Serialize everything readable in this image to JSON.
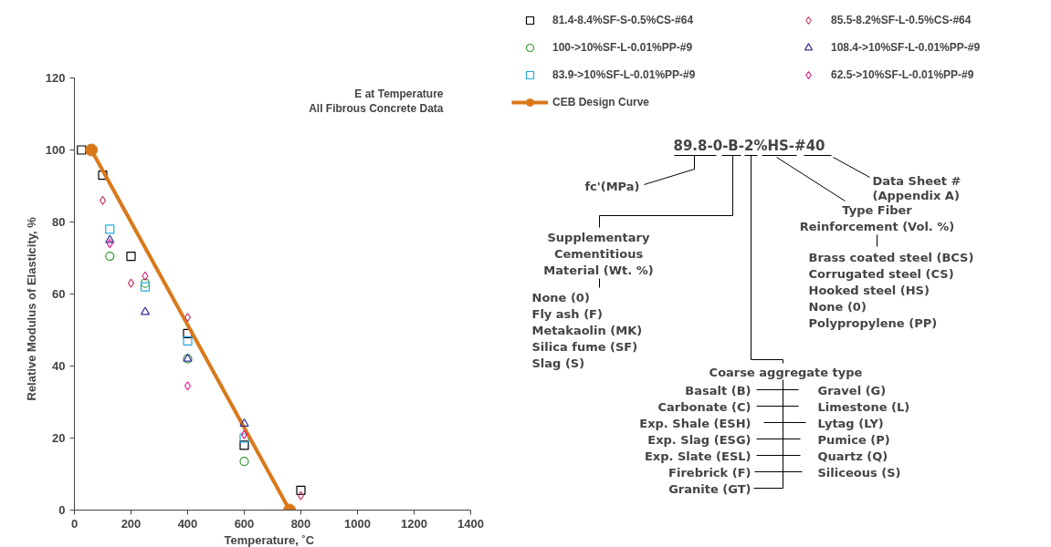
{
  "chart_data": {
    "type": "scatter",
    "xlabel": "Temperature, ˚C",
    "ylabel": "Relative Modulus of Elasticity, %",
    "xlim": [
      0,
      1400
    ],
    "xticks": [
      0,
      200,
      400,
      600,
      800,
      1000,
      1200,
      1400
    ],
    "ylim": [
      0,
      120
    ],
    "yticks": [
      0,
      20,
      40,
      60,
      80,
      100,
      120
    ],
    "legend": "top right",
    "series": [
      {
        "name": "81.4-8.4%SF-S-0.5%CS-#64",
        "color": "#000000",
        "marker": "square",
        "x": [
          25,
          100,
          200,
          400,
          600,
          800
        ],
        "values": [
          100,
          93,
          70.5,
          49,
          18,
          5.5
        ]
      },
      {
        "name": "100->10%SF-L-0.01%PP-#9",
        "color": "#339933",
        "marker": "circle",
        "x": [
          125,
          250,
          400,
          600
        ],
        "values": [
          70.5,
          63,
          42,
          13.5
        ]
      },
      {
        "name": "83.9->10%SF-L-0.01%PP-#9",
        "color": "#22aadd",
        "marker": "square",
        "x": [
          125,
          250,
          400,
          600
        ],
        "values": [
          78,
          62,
          47,
          20
        ]
      },
      {
        "name": "CEB Design Curve",
        "type": "line",
        "color": "#d9781a",
        "marker": "circle",
        "x": [
          60,
          760
        ],
        "values": [
          100,
          0
        ]
      },
      {
        "name": "85.5-8.2%SF-L-0.5%CS-#64",
        "color": "#cc4466",
        "marker": "diamond",
        "x": [
          100,
          200,
          400,
          800
        ],
        "values": [
          86,
          63,
          53.5,
          4
        ]
      },
      {
        "name": "108.4->10%SF-L-0.01%PP-#9",
        "color": "#333399",
        "marker": "triangle",
        "x": [
          125,
          250,
          400,
          600
        ],
        "values": [
          75,
          55,
          42,
          24
        ]
      },
      {
        "name": "62.5->10%SF-L-0.01%PP-#9",
        "color": "#dd2288",
        "marker": "diamond",
        "x": [
          125,
          250,
          400,
          600
        ],
        "values": [
          74,
          65,
          34.5,
          21
        ]
      }
    ],
    "annotations": [
      "E at Temperature",
      "All Fibrous Concrete Data",
      "89.8-0-B-2%HS-#40",
      "fc'(MPa)",
      "Data Sheet #",
      "(Appendix A)",
      "Type Fiber",
      "Reinforcement (Vol. %)",
      "Supplementary",
      "Cementitious",
      "Material (Wt. %)",
      "None (0)",
      "Fly ash (F)",
      "Metakaolin (MK)",
      "Silica fume (SF)",
      "Slag (S)",
      "Brass coated steel (BCS)",
      "Corrugated steel (CS)",
      "Hooked steel (HS)",
      "None (0)",
      "Polypropylene (PP)",
      "Coarse aggregate type",
      "Basalt (B)",
      "Carbonate (C)",
      "Exp. Shale (ESH)",
      "Exp. Slag (ESG)",
      "Exp. Slate (ESL)",
      "Firebrick (F)",
      "Granite (GT)",
      "Gravel (G)",
      "Limestone (L)",
      "Lytag (LY)",
      "Pumice (P)",
      "Quartz (Q)",
      "Siliceous (S)"
    ]
  }
}
